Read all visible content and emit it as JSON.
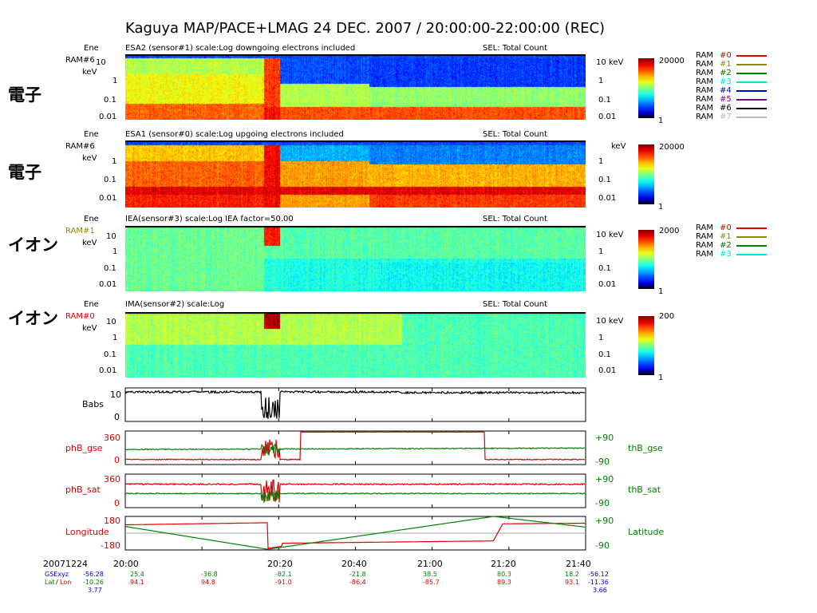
{
  "title": "Kaguya  MAP/PACE+LMAG  24 DEC. 2007 / 20:00:00-22:00:00 (REC)",
  "colors": {
    "red": "#e00000",
    "green": "#008000",
    "black": "#000000",
    "blue": "#0000cc"
  },
  "chart_data": {
    "type": "heatmap",
    "x_range": [
      "20:00",
      "22:00"
    ],
    "x_ticks": [
      "20:00",
      "20:20",
      "20:40",
      "21:00",
      "21:20",
      "21:40",
      "22:00"
    ],
    "panels": [
      {
        "side_label": "電子",
        "title": "ESA2 (sensor#1) scale:Log    downgoing electrons included",
        "sel": "SEL: Total Count",
        "ene_label": "Ene",
        "ram_label": "RAM#6",
        "ram_color": "#000000",
        "unit": "keV",
        "yticks": [
          "10",
          "1",
          "0.1",
          "0.01"
        ],
        "right_ticks": [
          "10 keV",
          "1",
          "0.1",
          "0.01"
        ],
        "colorbar_max": "20000",
        "colorbar_min": "1",
        "legend": [
          {
            "name": "RAM",
            "num": "#0",
            "color": "#e00000"
          },
          {
            "name": "RAM",
            "num": "#1",
            "color": "#8b8b00"
          },
          {
            "name": "RAM",
            "num": "#2",
            "color": "#008000"
          },
          {
            "name": "RAM",
            "num": "#3",
            "color": "#00e0e0"
          },
          {
            "name": "RAM",
            "num": "#4",
            "color": "#0000cc"
          },
          {
            "name": "RAM",
            "num": "#5",
            "color": "#800080"
          },
          {
            "name": "RAM",
            "num": "#6",
            "color": "#000000"
          },
          {
            "name": "RAM",
            "num": "#7",
            "color": "#bbbbbb"
          }
        ]
      },
      {
        "side_label": "電子",
        "title": "ESA1 (sensor#0) scale:Log    upgoing electrons included",
        "sel": "SEL: Total Count",
        "ene_label": "Ene",
        "ram_label": "RAM#6",
        "ram_color": "#000000",
        "unit": "keV",
        "yticks": [
          "1",
          "0.1",
          "0.01"
        ],
        "right_ticks": [
          "keV",
          "1",
          "0.1",
          "0.01"
        ],
        "colorbar_max": "20000",
        "colorbar_min": "1",
        "legend": []
      },
      {
        "side_label": "イオン",
        "title": "IEA(sensor#3) scale:Log  IEA factor=50.00",
        "sel": "SEL: Total Count",
        "ene_label": "Ene",
        "ram_label": "RAM#1",
        "ram_color": "#8b8b00",
        "unit": "keV",
        "yticks": [
          "10",
          "1",
          "0.1",
          "0.01"
        ],
        "right_ticks": [
          "10 keV",
          "1",
          "0.1",
          "0.01"
        ],
        "colorbar_max": "2000",
        "colorbar_min": "1",
        "legend": [
          {
            "name": "RAM",
            "num": "#0",
            "color": "#e00000"
          },
          {
            "name": "RAM",
            "num": "#1",
            "color": "#8b8b00"
          },
          {
            "name": "RAM",
            "num": "#2",
            "color": "#008000"
          },
          {
            "name": "RAM",
            "num": "#3",
            "color": "#00e0e0"
          }
        ]
      },
      {
        "side_label": "イオン",
        "title": "IMA(sensor#2) scale:Log",
        "sel": "SEL: Total Count",
        "ene_label": "Ene",
        "ram_label": "RAM#0",
        "ram_color": "#e00000",
        "unit": "keV",
        "yticks": [
          "10",
          "1",
          "0.1",
          "0.01"
        ],
        "right_ticks": [
          "10 keV",
          "1",
          "0.1",
          "0.01"
        ],
        "colorbar_max": "200",
        "colorbar_min": "1",
        "legend": []
      }
    ],
    "line_panels": [
      {
        "left_label": "Babs",
        "left_label_color": "#000000",
        "left_ticks": [
          "10",
          "0"
        ],
        "right_label": "",
        "right_ticks": []
      },
      {
        "left_label": "phB_gse",
        "left_label_color": "#e00000",
        "left_ticks": [
          "360",
          "0"
        ],
        "right_label": "thB_gse",
        "right_ticks": [
          "+90",
          "-90"
        ]
      },
      {
        "left_label": "phB_sat",
        "left_label_color": "#e00000",
        "left_ticks": [
          "360",
          "0"
        ],
        "right_label": "thB_sat",
        "right_ticks": [
          "+90",
          "-90"
        ]
      },
      {
        "left_label": "Longitude",
        "left_label_color": "#e00000",
        "left_ticks": [
          "180",
          "-180"
        ],
        "right_label": "Latitude",
        "right_ticks": [
          "+90",
          "-90"
        ]
      }
    ],
    "ephemeris": {
      "date": "20071224",
      "row_labels": {
        "gse": "GSExyz",
        "lat": "Lat",
        "slash": "/",
        "lon": "Lon"
      },
      "left_values": {
        "gse1": "-56.28",
        "gse2": "-10.26",
        "gse3": "3.77"
      },
      "right_values": {
        "gse1": "-56.12",
        "gse2": "-11.36",
        "gse3": "3.66"
      },
      "columns": [
        {
          "time": "20:00",
          "gse": "25.4",
          "latlon": "94.1"
        },
        {
          "time": "20:20",
          "gse": "-36.8",
          "latlon": "94.8"
        },
        {
          "time": "20:40",
          "gse": "-82.1",
          "latlon": "-91.0"
        },
        {
          "time": "21:00",
          "gse": "-21.8",
          "latlon": "-86.4"
        },
        {
          "time": "21:20",
          "gse": "38.5",
          "latlon": "-85.7"
        },
        {
          "time": "21:40",
          "gse": "80.3",
          "latlon": "89.3"
        },
        {
          "time": "22:00",
          "gse": "18.2",
          "latlon": "93.1"
        }
      ]
    }
  }
}
